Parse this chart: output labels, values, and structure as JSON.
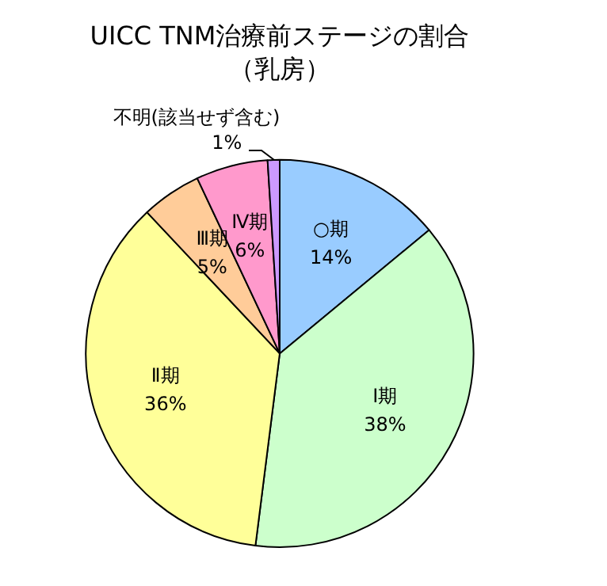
{
  "chart_data": {
    "type": "pie",
    "title": "UICC TNM治療前ステージの割合",
    "subtitle": "（乳房）",
    "categories": [
      "○期",
      "Ⅰ期",
      "Ⅱ期",
      "Ⅲ期",
      "Ⅳ期",
      "不明(該当せず含む)"
    ],
    "values": [
      14,
      38,
      36,
      5,
      6,
      1
    ],
    "value_labels": [
      "14%",
      "38%",
      "36%",
      "5%",
      "6%",
      "1%"
    ],
    "colors": [
      "#99ccff",
      "#ccffcc",
      "#ffff99",
      "#ffcc99",
      "#ff99cc",
      "#cc99ff"
    ],
    "legend": false
  }
}
